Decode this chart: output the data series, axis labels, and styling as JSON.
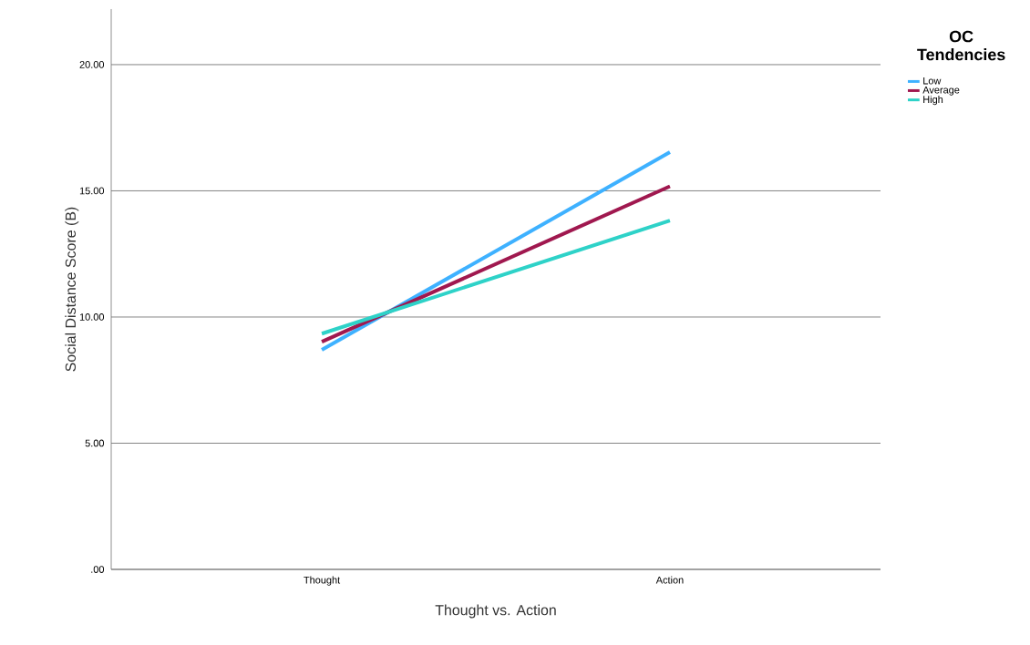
{
  "chart_data": {
    "type": "line",
    "xlabel": "Thought vs. Action",
    "ylabel": "Social Distance Score (B)",
    "legend_title": "OC Tendencies",
    "categories": [
      "Thought",
      "Action"
    ],
    "series": [
      {
        "name": "Low",
        "color": "#3eb1ff",
        "values": [
          8.7,
          16.53
        ]
      },
      {
        "name": "Average",
        "color": "#a0184f",
        "values": [
          9.02,
          15.18
        ]
      },
      {
        "name": "High",
        "color": "#2ed2c8",
        "values": [
          9.34,
          13.82
        ]
      }
    ],
    "ylim": [
      0,
      22.2
    ],
    "yticks": [
      {
        "value": 0,
        "label": ".00"
      },
      {
        "value": 5,
        "label": "5.00"
      },
      {
        "value": 10,
        "label": "10.00"
      },
      {
        "value": 15,
        "label": "15.00"
      },
      {
        "value": 20,
        "label": "20.00"
      }
    ],
    "grid": "y",
    "legend": "right",
    "marker": "none",
    "line_style": "solid"
  }
}
